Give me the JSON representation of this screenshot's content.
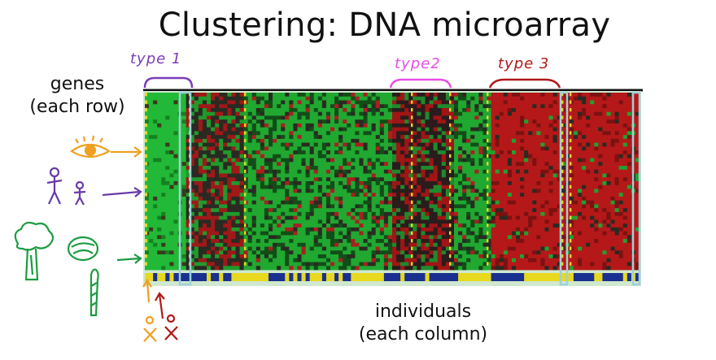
{
  "title": "Clustering: DNA microarray",
  "genes_label": {
    "line1": "genes",
    "line2": "(each row)"
  },
  "individuals_label": {
    "line1": "individuals",
    "line2": "(each column)"
  },
  "annotations": {
    "type1": "type 1",
    "type2": "type2",
    "type3": "type 3"
  },
  "colors": {
    "green": "#1fb030",
    "red": "#b01515",
    "yellow": "#e8d820",
    "blue": "#1a3090",
    "orange_arrow": "#f0a020",
    "purple_arrow": "#6a3aa8",
    "green_arrow": "#1c9c40"
  },
  "icons": [
    "eye-icon",
    "people-icon",
    "broccoli-icon",
    "cabbage-icon",
    "asparagus-icon",
    "stick-figures-icon"
  ]
}
